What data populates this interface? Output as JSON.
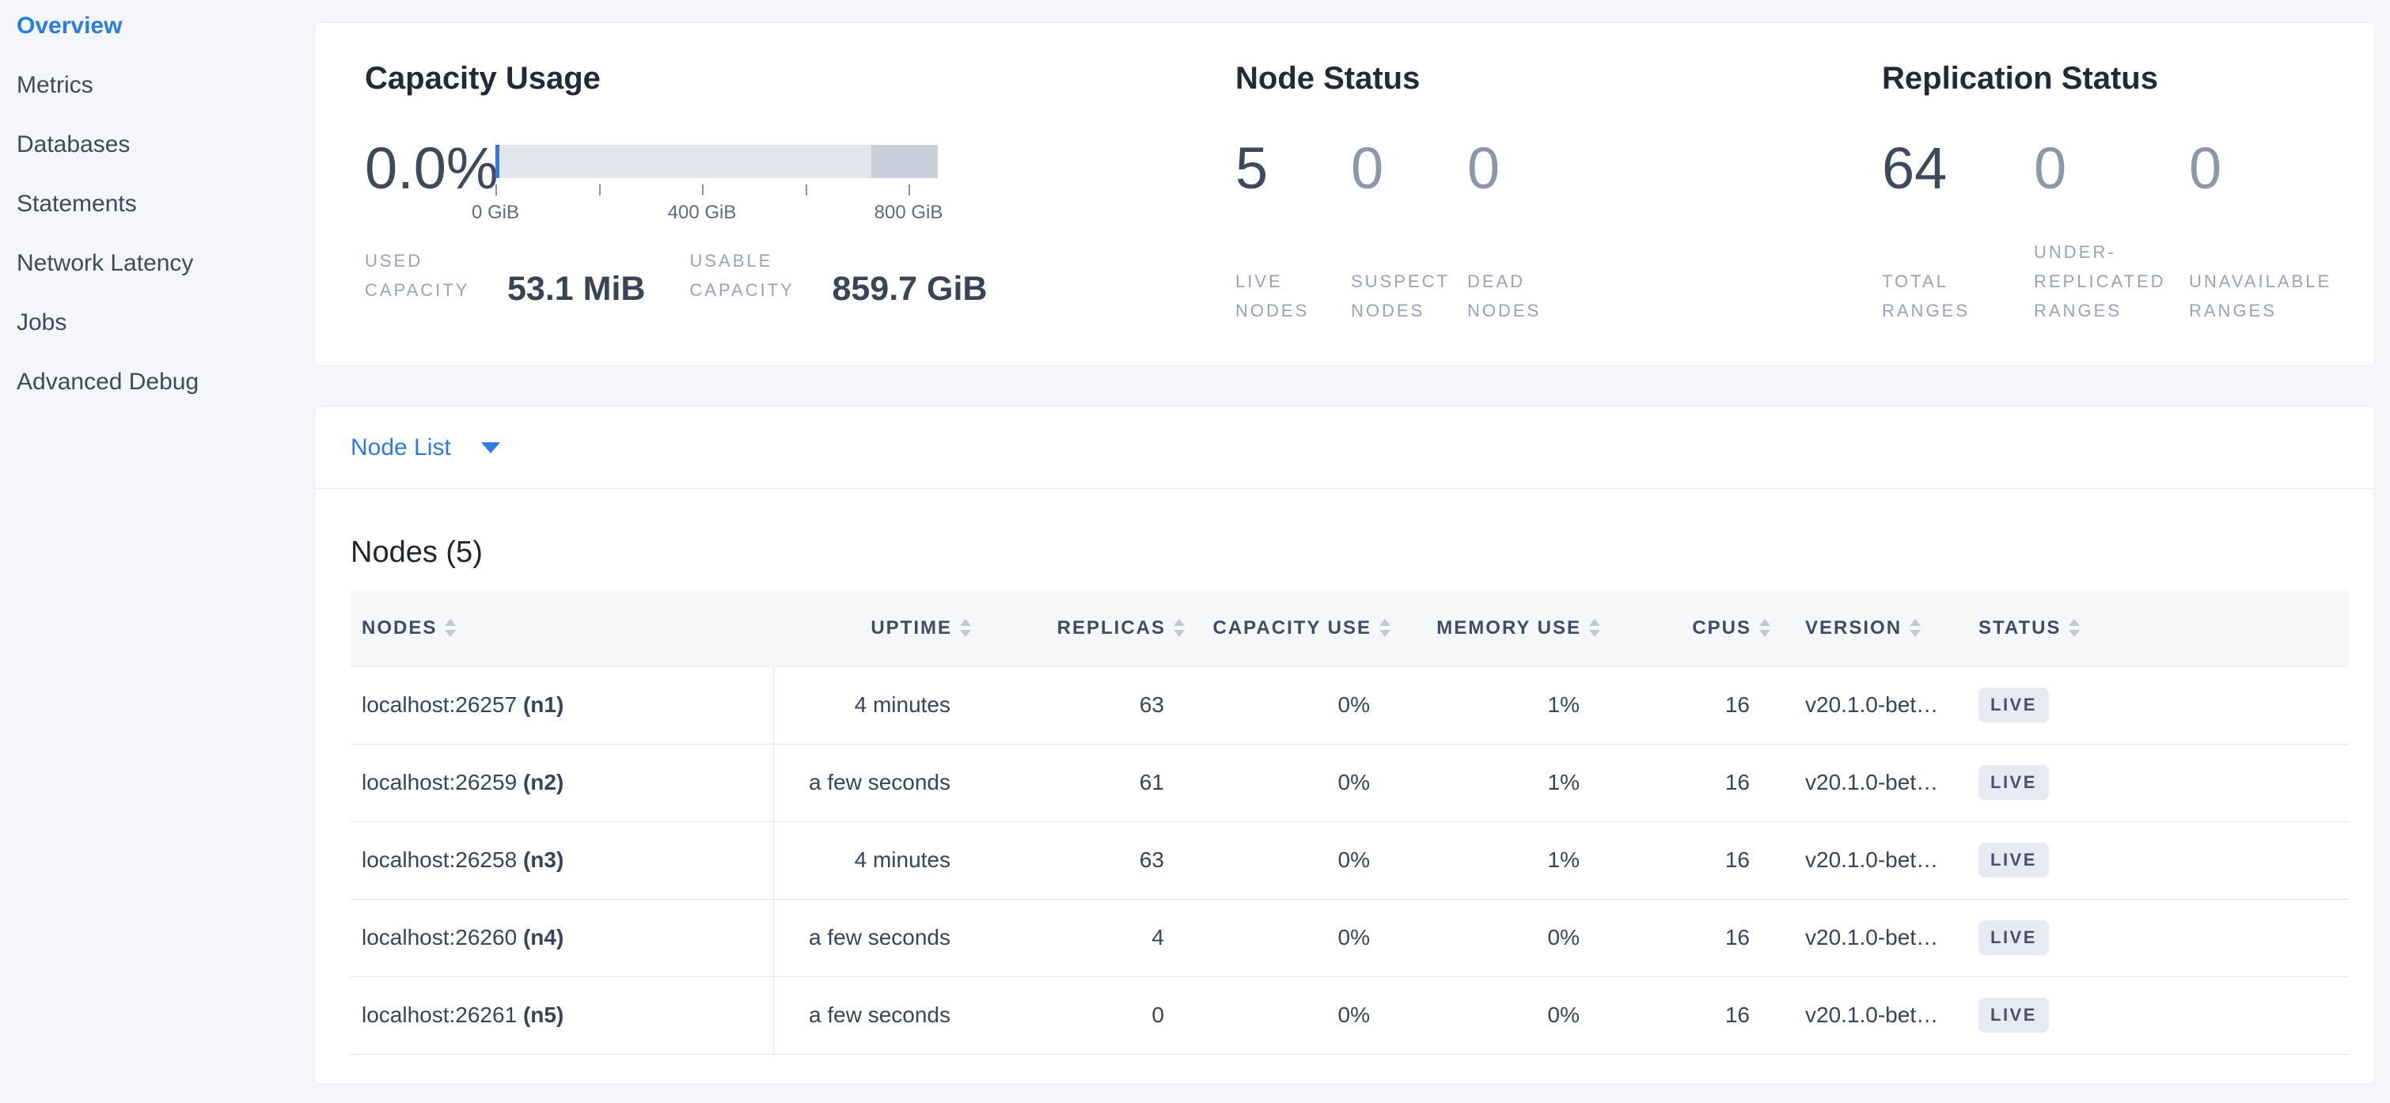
{
  "colors": {
    "accent_blue": "#2b7ce2",
    "heading": "#242a35",
    "body_text": "#394455",
    "dim_number": "#8d96ab",
    "label_gray": "#9aa2b5",
    "badge_bg": "#e7eaf2",
    "badge_text": "#475168",
    "bar_used": "#3a76d8",
    "bar_available": "#e3e6ec",
    "bar_other": "#c9cedb",
    "table_header_bg": "#f6f7f9",
    "page_bg": "#f4f6fa"
  },
  "sidebar": {
    "items": [
      {
        "label": "Overview",
        "active": true
      },
      {
        "label": "Metrics",
        "active": false
      },
      {
        "label": "Databases",
        "active": false
      },
      {
        "label": "Statements",
        "active": false
      },
      {
        "label": "Network Latency",
        "active": false
      },
      {
        "label": "Jobs",
        "active": false
      },
      {
        "label": "Advanced Debug",
        "active": false
      }
    ]
  },
  "capacity": {
    "title": "Capacity Usage",
    "percent": "0.0%",
    "gauge": {
      "tick_labels": [
        "0 GiB",
        "400 GiB",
        "800 GiB"
      ],
      "axis_ticks_gib": [
        0,
        200,
        400,
        600,
        800
      ]
    },
    "stats": [
      {
        "label": "USED CAPACITY",
        "value": "53.1 MiB"
      },
      {
        "label": "USABLE CAPACITY",
        "value": "859.7 GiB"
      }
    ]
  },
  "node_status": {
    "title": "Node Status",
    "stats": [
      {
        "value": "5",
        "label": "LIVE NODES",
        "dim": false
      },
      {
        "value": "0",
        "label": "SUSPECT NODES",
        "dim": true
      },
      {
        "value": "0",
        "label": "DEAD NODES",
        "dim": true
      }
    ]
  },
  "replication": {
    "title": "Replication Status",
    "stats": [
      {
        "value": "64",
        "label": "TOTAL RANGES",
        "dim": false
      },
      {
        "value": "0",
        "label": "UNDER-REPLICATED RANGES",
        "dim": true
      },
      {
        "value": "0",
        "label": "UNAVAILABLE RANGES",
        "dim": true
      }
    ]
  },
  "node_list": {
    "selector_label": "Node List",
    "section_title": "Nodes (5)"
  },
  "table": {
    "columns": [
      {
        "label": "NODES",
        "sortable": true
      },
      {
        "label": "UPTIME",
        "sortable": true
      },
      {
        "label": "REPLICAS",
        "sortable": true
      },
      {
        "label": "CAPACITY USE",
        "sortable": true
      },
      {
        "label": "MEMORY USE",
        "sortable": true
      },
      {
        "label": "CPUS",
        "sortable": true
      },
      {
        "label": "VERSION",
        "sortable": true
      },
      {
        "label": "STATUS",
        "sortable": true
      }
    ],
    "rows": [
      {
        "address": "localhost:26257",
        "id": "(n1)",
        "uptime": "4 minutes",
        "replicas": "63",
        "capacity_use": "0%",
        "memory_use": "1%",
        "cpus": "16",
        "version": "v20.1.0-bet…",
        "status": "LIVE"
      },
      {
        "address": "localhost:26259",
        "id": "(n2)",
        "uptime": "a few seconds",
        "replicas": "61",
        "capacity_use": "0%",
        "memory_use": "1%",
        "cpus": "16",
        "version": "v20.1.0-bet…",
        "status": "LIVE"
      },
      {
        "address": "localhost:26258",
        "id": "(n3)",
        "uptime": "4 minutes",
        "replicas": "63",
        "capacity_use": "0%",
        "memory_use": "1%",
        "cpus": "16",
        "version": "v20.1.0-bet…",
        "status": "LIVE"
      },
      {
        "address": "localhost:26260",
        "id": "(n4)",
        "uptime": "a few seconds",
        "replicas": "4",
        "capacity_use": "0%",
        "memory_use": "0%",
        "cpus": "16",
        "version": "v20.1.0-bet…",
        "status": "LIVE"
      },
      {
        "address": "localhost:26261",
        "id": "(n5)",
        "uptime": "a few seconds",
        "replicas": "0",
        "capacity_use": "0%",
        "memory_use": "0%",
        "cpus": "16",
        "version": "v20.1.0-bet…",
        "status": "LIVE"
      }
    ]
  }
}
